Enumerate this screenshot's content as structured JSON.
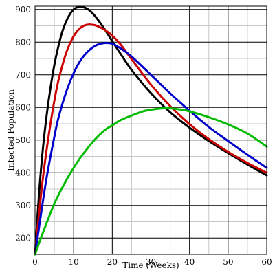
{
  "chart_data": {
    "type": "line",
    "title": "",
    "xlabel": "Time (Weeks)",
    "ylabel": "Infected  Population",
    "xlim": [
      0,
      60
    ],
    "ylim": [
      150,
      910
    ],
    "x_ticks": [
      0,
      10,
      20,
      30,
      40,
      50,
      60
    ],
    "y_ticks": [
      200,
      300,
      400,
      500,
      600,
      700,
      800,
      900
    ],
    "x_minor_step": 5,
    "y_minor_step": 50,
    "grid": true,
    "legend": "none",
    "series": [
      {
        "color": "#000000",
        "points": [
          [
            0,
            150
          ],
          [
            1,
            330
          ],
          [
            2,
            470
          ],
          [
            3,
            575
          ],
          [
            4,
            660
          ],
          [
            5,
            730
          ],
          [
            6,
            785
          ],
          [
            7,
            830
          ],
          [
            8,
            862
          ],
          [
            9,
            885
          ],
          [
            10,
            900
          ],
          [
            11,
            907
          ],
          [
            12,
            908
          ],
          [
            13,
            905
          ],
          [
            14,
            898
          ],
          [
            15,
            887
          ],
          [
            16,
            873
          ],
          [
            18,
            840
          ],
          [
            20,
            803
          ],
          [
            22,
            767
          ],
          [
            25,
            715
          ],
          [
            30,
            644
          ],
          [
            35,
            585
          ],
          [
            40,
            538
          ],
          [
            45,
            497
          ],
          [
            50,
            460
          ],
          [
            55,
            425
          ],
          [
            60,
            392
          ]
        ]
      },
      {
        "color": "#cc0000",
        "points": [
          [
            0,
            150
          ],
          [
            1,
            270
          ],
          [
            2,
            380
          ],
          [
            3,
            470
          ],
          [
            4,
            550
          ],
          [
            5,
            620
          ],
          [
            6,
            680
          ],
          [
            7,
            725
          ],
          [
            8,
            765
          ],
          [
            9,
            795
          ],
          [
            10,
            818
          ],
          [
            11,
            835
          ],
          [
            12,
            846
          ],
          [
            13,
            852
          ],
          [
            14,
            854
          ],
          [
            15,
            853
          ],
          [
            16,
            850
          ],
          [
            18,
            838
          ],
          [
            20,
            820
          ],
          [
            22,
            795
          ],
          [
            25,
            748
          ],
          [
            30,
            670
          ],
          [
            35,
            604
          ],
          [
            40,
            549
          ],
          [
            45,
            503
          ],
          [
            50,
            464
          ],
          [
            55,
            430
          ],
          [
            60,
            400
          ]
        ]
      },
      {
        "color": "#0000cc",
        "points": [
          [
            0,
            150
          ],
          [
            1,
            230
          ],
          [
            2,
            310
          ],
          [
            3,
            385
          ],
          [
            4,
            450
          ],
          [
            5,
            510
          ],
          [
            6,
            565
          ],
          [
            8,
            645
          ],
          [
            10,
            705
          ],
          [
            12,
            748
          ],
          [
            14,
            775
          ],
          [
            16,
            791
          ],
          [
            18,
            797
          ],
          [
            20,
            795
          ],
          [
            22,
            782
          ],
          [
            25,
            756
          ],
          [
            30,
            700
          ],
          [
            35,
            643
          ],
          [
            40,
            590
          ],
          [
            45,
            540
          ],
          [
            50,
            497
          ],
          [
            55,
            455
          ],
          [
            60,
            415
          ]
        ]
      },
      {
        "color": "#00bb00",
        "points": [
          [
            0,
            150
          ],
          [
            2,
            215
          ],
          [
            5,
            305
          ],
          [
            8,
            375
          ],
          [
            10,
            415
          ],
          [
            12,
            450
          ],
          [
            15,
            495
          ],
          [
            18,
            530
          ],
          [
            20,
            545
          ],
          [
            22,
            560
          ],
          [
            25,
            575
          ],
          [
            28,
            588
          ],
          [
            30,
            593
          ],
          [
            33,
            597
          ],
          [
            35,
            597
          ],
          [
            38,
            593
          ],
          [
            40,
            588
          ],
          [
            45,
            570
          ],
          [
            50,
            548
          ],
          [
            55,
            520
          ],
          [
            60,
            480
          ]
        ]
      }
    ]
  }
}
